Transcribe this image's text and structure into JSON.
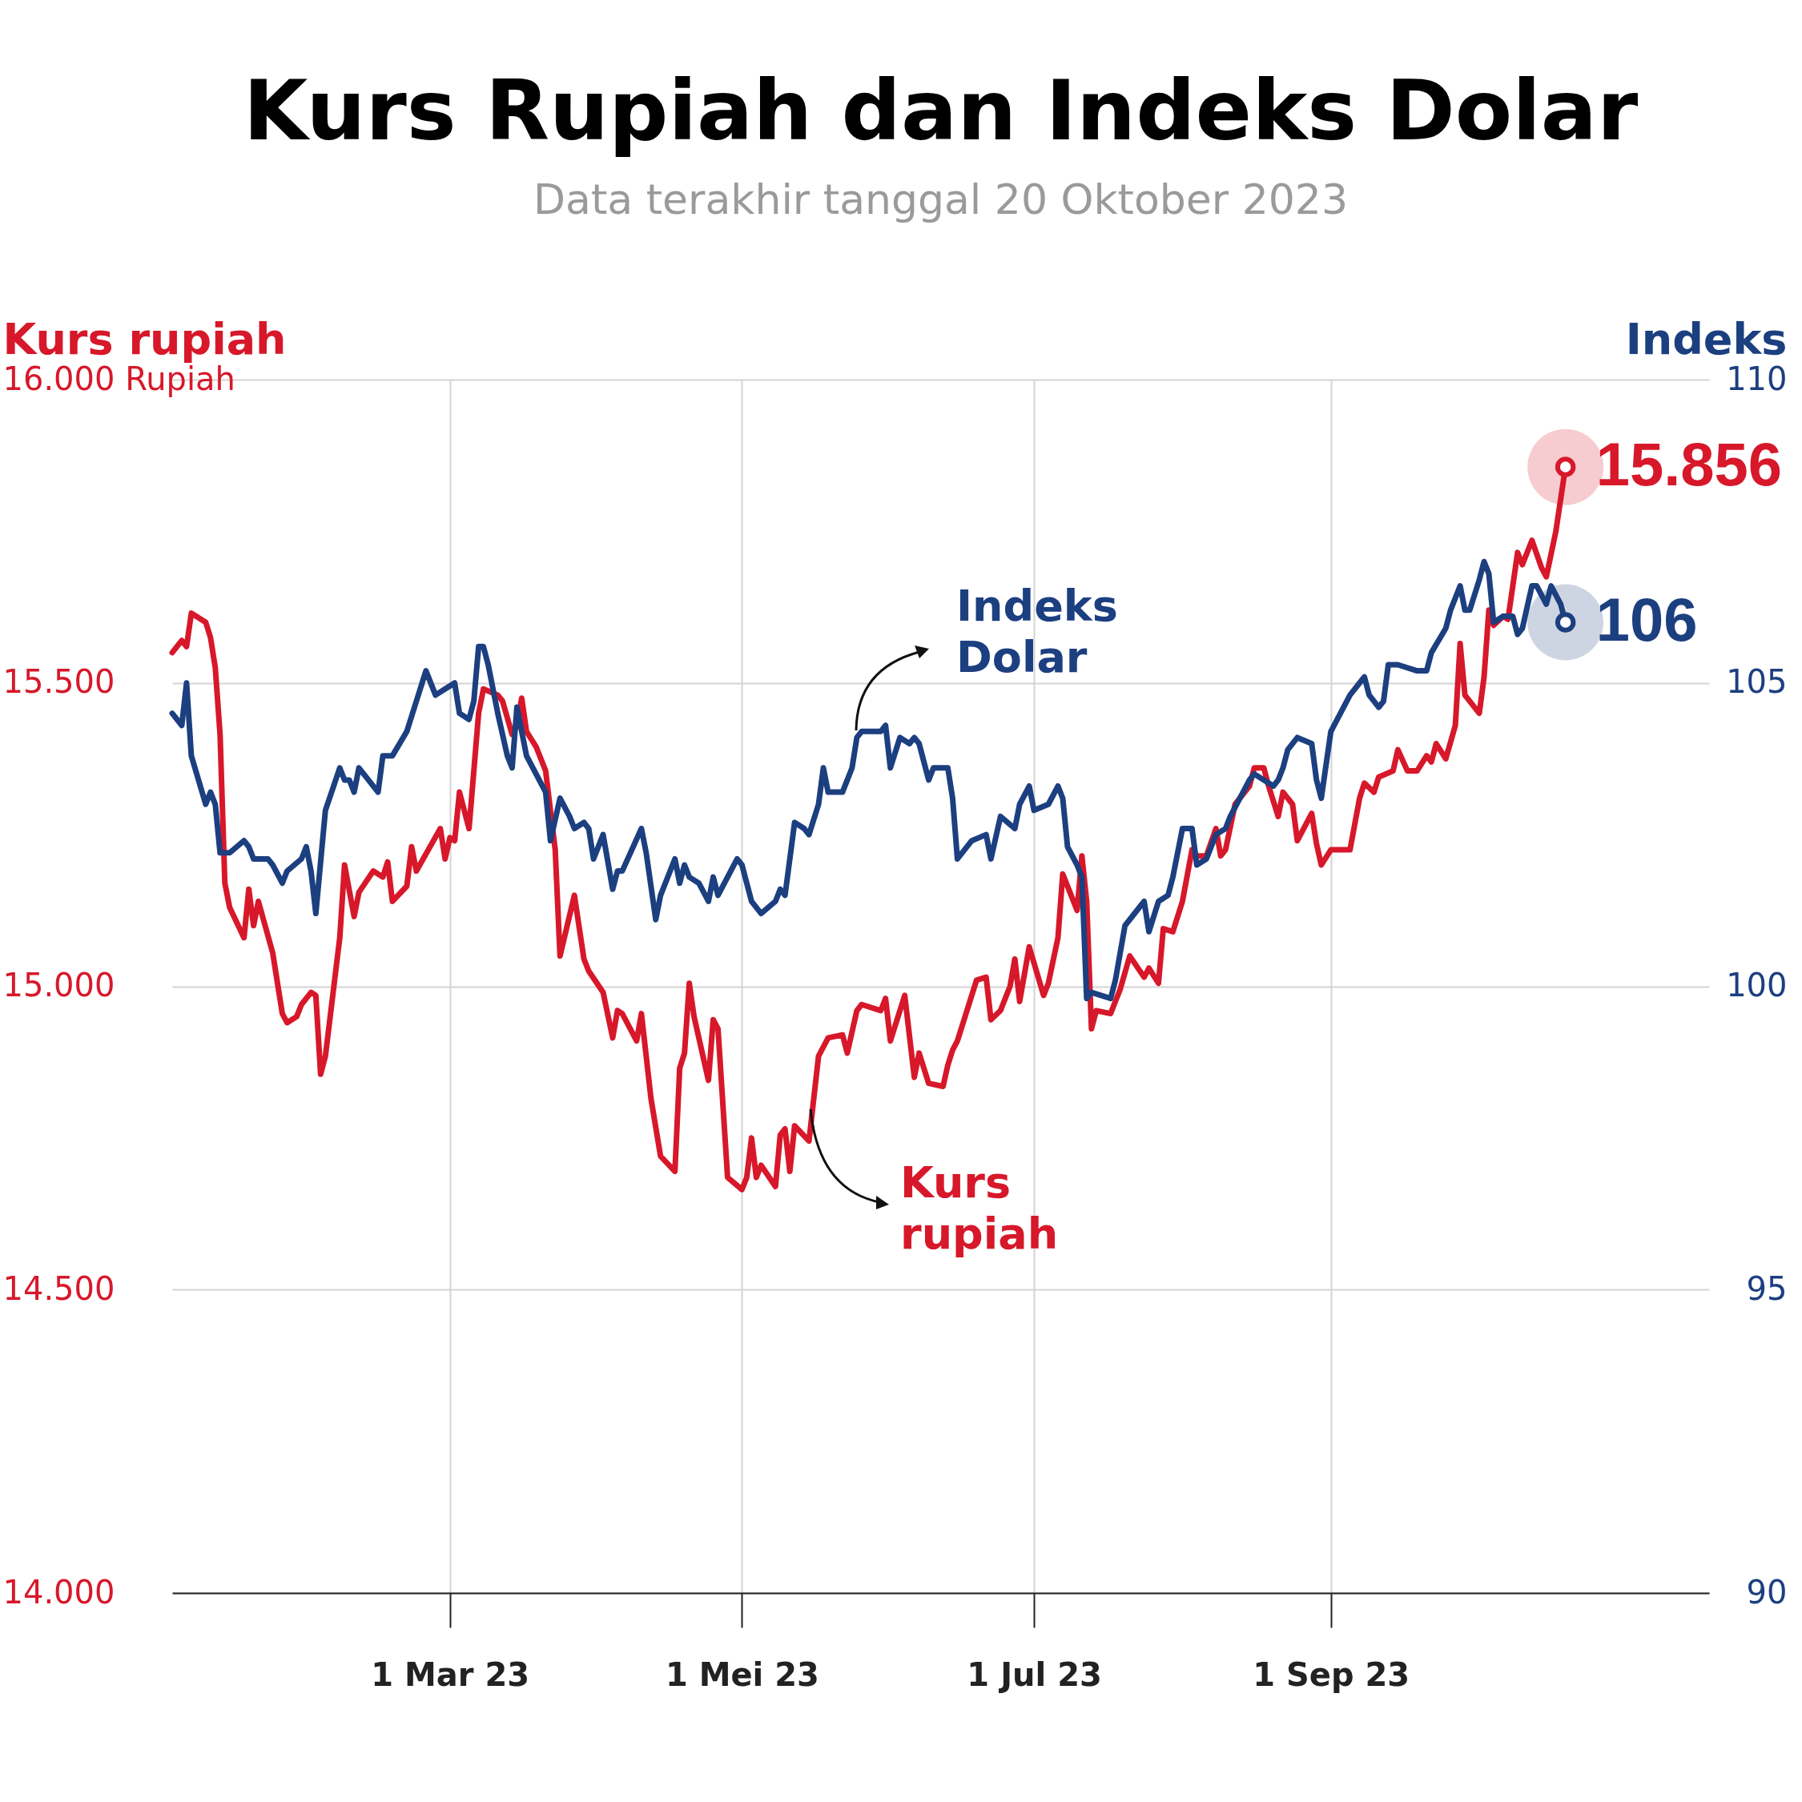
{
  "chart_data": {
    "type": "line",
    "title": "Kurs Rupiah dan Indeks Dolar",
    "subtitle": "Data terakhir tanggal 20 Oktober 2023",
    "ylabel": "Kurs rupiah",
    "y2label": "Indeks",
    "xlim": [
      "2023-01-02",
      "2023-11-19"
    ],
    "xticks": [
      {
        "value": "2023-03-01",
        "label": "1 Mar 23"
      },
      {
        "value": "2023-05-01",
        "label": "1 Mei 23"
      },
      {
        "value": "2023-07-01",
        "label": "1 Jul 23"
      },
      {
        "value": "2023-09-01",
        "label": "1 Sep 23"
      }
    ],
    "ylim": [
      14000,
      16000
    ],
    "yticks": [
      {
        "value": 14000,
        "label": "14.000"
      },
      {
        "value": 14500,
        "label": "14.500"
      },
      {
        "value": 15000,
        "label": "15.000"
      },
      {
        "value": 15500,
        "label": "15.500"
      },
      {
        "value": 16000,
        "label": "16.000 Rupiah"
      }
    ],
    "y2lim": [
      90,
      110
    ],
    "y2ticks": [
      90,
      95,
      100,
      105,
      110
    ],
    "grid": true,
    "series": [
      {
        "name": "Kurs rupiah",
        "type": "line",
        "color": "#d7182a",
        "x": [
          "2023-01-02",
          "2023-01-04",
          "2023-01-05",
          "2023-01-06",
          "2023-01-09",
          "2023-01-10",
          "2023-01-11",
          "2023-01-12",
          "2023-01-13",
          "2023-01-14",
          "2023-01-17",
          "2023-01-18",
          "2023-01-19",
          "2023-01-20",
          "2023-01-23",
          "2023-01-25",
          "2023-01-26",
          "2023-01-28",
          "2023-01-29",
          "2023-01-31",
          "2023-02-01",
          "2023-02-02",
          "2023-02-03",
          "2023-02-06",
          "2023-02-07",
          "2023-02-09",
          "2023-02-10",
          "2023-02-13",
          "2023-02-15",
          "2023-02-16",
          "2023-02-17",
          "2023-02-20",
          "2023-02-21",
          "2023-02-22",
          "2023-02-27",
          "2023-02-28",
          "2023-03-01",
          "2023-03-02",
          "2023-03-03",
          "2023-03-05",
          "2023-03-07",
          "2023-03-08",
          "2023-03-11",
          "2023-03-12",
          "2023-03-14",
          "2023-03-15",
          "2023-03-16",
          "2023-03-17",
          "2023-03-19",
          "2023-03-21",
          "2023-03-23",
          "2023-03-24",
          "2023-03-27",
          "2023-03-29",
          "2023-03-30",
          "2023-04-02",
          "2023-04-04",
          "2023-04-05",
          "2023-04-06",
          "2023-04-09",
          "2023-04-10",
          "2023-04-12",
          "2023-04-14",
          "2023-04-17",
          "2023-04-18",
          "2023-04-19",
          "2023-04-20",
          "2023-04-21",
          "2023-04-24",
          "2023-04-25",
          "2023-04-26",
          "2023-04-28",
          "2023-05-01",
          "2023-05-02",
          "2023-05-03",
          "2023-05-04",
          "2023-05-05",
          "2023-05-08",
          "2023-05-09",
          "2023-05-10",
          "2023-05-11",
          "2023-05-12",
          "2023-05-15",
          "2023-05-17",
          "2023-05-19",
          "2023-05-22",
          "2023-05-23",
          "2023-05-25",
          "2023-05-26",
          "2023-05-30",
          "2023-05-31",
          "2023-06-01",
          "2023-06-04",
          "2023-06-06",
          "2023-06-07",
          "2023-06-09",
          "2023-06-12",
          "2023-06-13",
          "2023-06-14",
          "2023-06-15",
          "2023-06-19",
          "2023-06-21",
          "2023-06-22",
          "2023-06-24",
          "2023-06-26",
          "2023-06-27",
          "2023-06-28",
          "2023-06-30",
          "2023-07-03",
          "2023-07-04",
          "2023-07-06",
          "2023-07-07",
          "2023-07-10",
          "2023-07-11",
          "2023-07-12",
          "2023-07-13",
          "2023-07-14",
          "2023-07-17",
          "2023-07-19",
          "2023-07-21",
          "2023-07-24",
          "2023-07-25",
          "2023-07-27",
          "2023-07-28",
          "2023-07-30",
          "2023-08-01",
          "2023-08-03",
          "2023-08-04",
          "2023-08-06",
          "2023-08-08",
          "2023-08-09",
          "2023-08-10",
          "2023-08-12",
          "2023-08-15",
          "2023-08-16",
          "2023-08-18",
          "2023-08-19",
          "2023-08-21",
          "2023-08-22",
          "2023-08-24",
          "2023-08-25",
          "2023-08-28",
          "2023-08-29",
          "2023-08-30",
          "2023-09-01",
          "2023-09-04",
          "2023-09-05",
          "2023-09-07",
          "2023-09-08",
          "2023-09-10",
          "2023-09-11",
          "2023-09-14",
          "2023-09-15",
          "2023-09-17",
          "2023-09-19",
          "2023-09-21",
          "2023-09-22",
          "2023-09-23",
          "2023-09-25",
          "2023-09-27",
          "2023-09-28",
          "2023-09-29",
          "2023-10-02",
          "2023-10-03",
          "2023-10-04",
          "2023-10-05",
          "2023-10-07",
          "2023-10-08",
          "2023-10-10",
          "2023-10-11",
          "2023-10-13",
          "2023-10-15",
          "2023-10-16",
          "2023-10-18",
          "2023-10-20"
        ],
        "values": [
          15550,
          15570,
          15560,
          15615,
          15600,
          15575,
          15525,
          15415,
          15170,
          15130,
          15080,
          15160,
          15100,
          15140,
          15055,
          14955,
          14940,
          14950,
          14970,
          14990,
          14985,
          14855,
          14885,
          15080,
          15200,
          15115,
          15155,
          15190,
          15180,
          15205,
          15140,
          15165,
          15230,
          15190,
          15260,
          15210,
          15245,
          15240,
          15320,
          15260,
          15450,
          15490,
          15480,
          15470,
          15415,
          15430,
          15475,
          15420,
          15395,
          15355,
          15225,
          15050,
          15150,
          15045,
          15025,
          14990,
          14915,
          14960,
          14955,
          14910,
          14955,
          14815,
          14720,
          14695,
          14865,
          14890,
          15005,
          14950,
          14845,
          14945,
          14930,
          14685,
          14665,
          14685,
          14750,
          14685,
          14705,
          14670,
          14755,
          14765,
          14695,
          14770,
          14745,
          14885,
          14915,
          14920,
          14890,
          14960,
          14970,
          14960,
          14980,
          14910,
          14985,
          14850,
          14890,
          14840,
          14835,
          14870,
          14895,
          14910,
          15010,
          15015,
          14945,
          14960,
          15000,
          15045,
          14975,
          15065,
          14985,
          15005,
          15080,
          15185,
          15125,
          15215,
          15140,
          14930,
          14960,
          14955,
          14995,
          15050,
          15015,
          15030,
          15005,
          15095,
          15090,
          15140,
          15225,
          15215,
          15215,
          15260,
          15215,
          15225,
          15300,
          15330,
          15360,
          15360,
          15330,
          15280,
          15320,
          15300,
          15240,
          15285,
          15235,
          15200,
          15225,
          15225,
          15225,
          15310,
          15335,
          15320,
          15345,
          15355,
          15390,
          15355,
          15355,
          15380,
          15370,
          15400,
          15375,
          15430,
          15565,
          15480,
          15450,
          15510,
          15620,
          15595,
          15610,
          15605,
          15715,
          15695,
          15735,
          15690,
          15675,
          15750,
          15856
        ]
      },
      {
        "name": "Indeks Dolar",
        "type": "line",
        "axis": "y2",
        "color": "#1c3f80",
        "x": [
          "2023-01-02",
          "2023-01-04",
          "2023-01-05",
          "2023-01-06",
          "2023-01-09",
          "2023-01-10",
          "2023-01-11",
          "2023-01-12",
          "2023-01-14",
          "2023-01-17",
          "2023-01-18",
          "2023-01-19",
          "2023-01-22",
          "2023-01-23",
          "2023-01-25",
          "2023-01-26",
          "2023-01-29",
          "2023-01-30",
          "2023-01-31",
          "2023-02-01",
          "2023-02-03",
          "2023-02-06",
          "2023-02-07",
          "2023-02-08",
          "2023-02-09",
          "2023-02-10",
          "2023-02-12",
          "2023-02-14",
          "2023-02-15",
          "2023-02-17",
          "2023-02-20",
          "2023-02-22",
          "2023-02-24",
          "2023-02-26",
          "2023-02-28",
          "2023-03-02",
          "2023-03-03",
          "2023-03-05",
          "2023-03-06",
          "2023-03-07",
          "2023-03-08",
          "2023-03-09",
          "2023-03-11",
          "2023-03-13",
          "2023-03-14",
          "2023-03-15",
          "2023-03-17",
          "2023-03-19",
          "2023-03-21",
          "2023-03-22",
          "2023-03-24",
          "2023-03-26",
          "2023-03-27",
          "2023-03-29",
          "2023-03-30",
          "2023-03-31",
          "2023-04-02",
          "2023-04-04",
          "2023-04-05",
          "2023-04-06",
          "2023-04-10",
          "2023-04-11",
          "2023-04-13",
          "2023-04-14",
          "2023-04-17",
          "2023-04-18",
          "2023-04-19",
          "2023-04-20",
          "2023-04-22",
          "2023-04-24",
          "2023-04-25",
          "2023-04-26",
          "2023-04-30",
          "2023-05-01",
          "2023-05-03",
          "2023-05-05",
          "2023-05-08",
          "2023-05-09",
          "2023-05-10",
          "2023-05-12",
          "2023-05-14",
          "2023-05-15",
          "2023-05-17",
          "2023-05-18",
          "2023-05-19",
          "2023-05-22",
          "2023-05-24",
          "2023-05-25",
          "2023-05-26",
          "2023-05-30",
          "2023-05-31",
          "2023-06-01",
          "2023-06-03",
          "2023-06-05",
          "2023-06-06",
          "2023-06-07",
          "2023-06-09",
          "2023-06-10",
          "2023-06-13",
          "2023-06-14",
          "2023-06-15",
          "2023-06-18",
          "2023-06-21",
          "2023-06-22",
          "2023-06-24",
          "2023-06-27",
          "2023-06-28",
          "2023-06-30",
          "2023-07-01",
          "2023-07-04",
          "2023-07-06",
          "2023-07-07",
          "2023-07-08",
          "2023-07-10",
          "2023-07-11",
          "2023-07-12",
          "2023-07-13",
          "2023-07-17",
          "2023-07-18",
          "2023-07-20",
          "2023-07-23",
          "2023-07-24",
          "2023-07-25",
          "2023-07-27",
          "2023-07-29",
          "2023-07-30",
          "2023-08-01",
          "2023-08-03",
          "2023-08-04",
          "2023-08-06",
          "2023-08-08",
          "2023-08-10",
          "2023-08-11",
          "2023-08-15",
          "2023-08-16",
          "2023-08-20",
          "2023-08-21",
          "2023-08-22",
          "2023-08-23",
          "2023-08-25",
          "2023-08-28",
          "2023-08-29",
          "2023-08-30",
          "2023-09-01",
          "2023-09-03",
          "2023-09-05",
          "2023-09-07",
          "2023-09-08",
          "2023-09-09",
          "2023-09-11",
          "2023-09-12",
          "2023-09-13",
          "2023-09-15",
          "2023-09-19",
          "2023-09-21",
          "2023-09-22",
          "2023-09-25",
          "2023-09-26",
          "2023-09-28",
          "2023-09-29",
          "2023-09-30",
          "2023-10-02",
          "2023-10-03",
          "2023-10-04",
          "2023-10-05",
          "2023-10-07",
          "2023-10-09",
          "2023-10-10",
          "2023-10-11",
          "2023-10-13",
          "2023-10-14",
          "2023-10-16",
          "2023-10-17",
          "2023-10-19",
          "2023-10-20"
        ],
        "values": [
          104.5,
          104.3,
          105.0,
          103.8,
          103.0,
          103.2,
          103.0,
          102.2,
          102.2,
          102.4,
          102.3,
          102.1,
          102.1,
          102.0,
          101.7,
          101.9,
          102.1,
          102.3,
          101.9,
          101.2,
          102.9,
          103.6,
          103.4,
          103.4,
          103.2,
          103.6,
          103.4,
          103.2,
          103.8,
          103.8,
          104.2,
          104.7,
          105.2,
          104.8,
          104.9,
          105.0,
          104.5,
          104.4,
          104.7,
          105.6,
          105.6,
          105.3,
          104.5,
          103.8,
          103.6,
          104.6,
          103.8,
          103.5,
          103.2,
          102.4,
          103.1,
          102.8,
          102.6,
          102.7,
          102.6,
          102.1,
          102.5,
          101.6,
          101.9,
          101.9,
          102.6,
          102.2,
          101.1,
          101.5,
          102.1,
          101.7,
          102.0,
          101.8,
          101.7,
          101.4,
          101.8,
          101.5,
          102.1,
          102.0,
          101.4,
          101.2,
          101.4,
          101.6,
          101.5,
          102.7,
          102.6,
          102.5,
          103.0,
          103.6,
          103.2,
          103.2,
          103.6,
          104.1,
          104.2,
          104.2,
          104.3,
          103.6,
          104.1,
          104.0,
          104.1,
          104.0,
          103.4,
          103.6,
          103.6,
          103.1,
          102.1,
          102.4,
          102.5,
          102.1,
          102.8,
          102.6,
          103.0,
          103.3,
          102.9,
          103.0,
          103.3,
          103.1,
          102.3,
          102.0,
          101.8,
          99.8,
          99.9,
          99.8,
          100.1,
          101.0,
          101.3,
          101.4,
          100.9,
          101.4,
          101.5,
          101.8,
          102.6,
          102.6,
          102.0,
          102.1,
          102.5,
          102.6,
          102.8,
          103.4,
          103.5,
          103.3,
          103.4,
          103.6,
          103.9,
          104.1,
          104.0,
          103.4,
          103.1,
          104.2,
          104.5,
          104.8,
          105.0,
          105.1,
          104.8,
          104.6,
          104.7,
          105.3,
          105.3,
          105.2,
          105.2,
          105.5,
          105.9,
          106.2,
          106.6,
          106.2,
          106.2,
          106.7,
          107.0,
          106.8,
          106.0,
          106.1,
          106.1,
          105.8,
          105.9,
          106.6,
          106.6,
          106.3,
          106.6,
          106.3,
          106
        ]
      },
      {
        "type": "scatter",
        "color": "#d7182a",
        "x": [
          "2023-10-20"
        ],
        "values": [
          15856
        ],
        "value_labels": [
          "15.856"
        ]
      },
      {
        "type": "scatter",
        "axis": "y2",
        "color": "#1c3f80",
        "x": [
          "2023-10-20"
        ],
        "values": [
          106
        ],
        "value_labels": [
          "106"
        ]
      }
    ]
  }
}
